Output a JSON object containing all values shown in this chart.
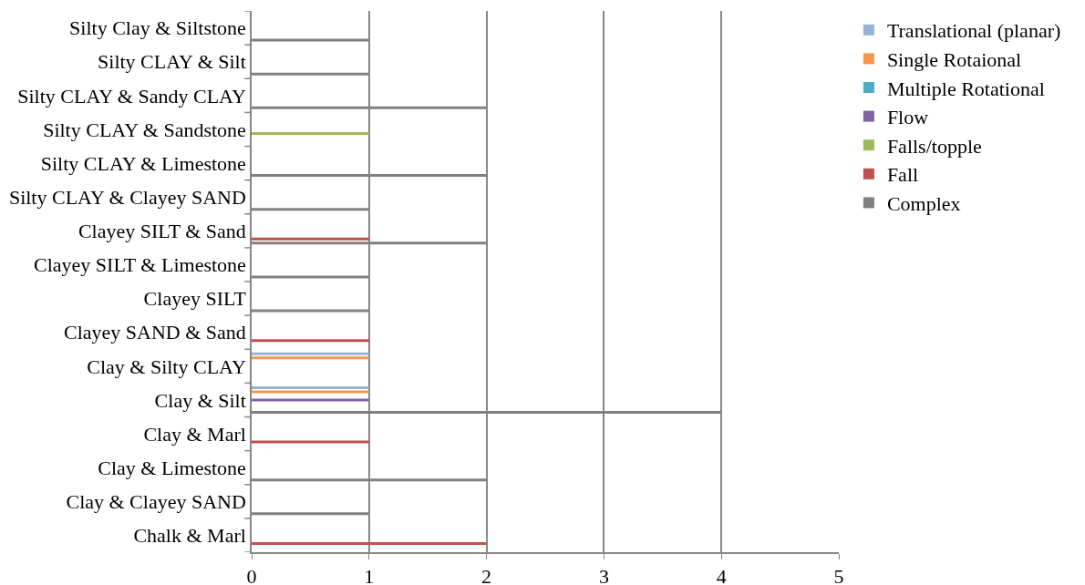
{
  "chart_data": {
    "type": "bar",
    "orientation": "horizontal",
    "categories": [
      "Silty Clay & Siltstone",
      "Silty CLAY & Silt",
      "Silty CLAY & Sandy CLAY",
      "Silty CLAY & Sandstone",
      "Silty CLAY & Limestone",
      "Silty CLAY & Clayey SAND",
      "Clayey SILT & Sand",
      "Clayey SILT & Limestone",
      "Clayey SILT",
      "Clayey SAND & Sand",
      "Clay & Silty CLAY",
      "Clay & Silt",
      "Clay & Marl",
      "Clay & Limestone",
      "Clay & Clayey SAND",
      "Chalk & Marl"
    ],
    "series": [
      {
        "name": "Translational (planar)",
        "color": "#95b3d7",
        "values": [
          null,
          null,
          null,
          null,
          null,
          null,
          null,
          null,
          null,
          null,
          1,
          1,
          null,
          null,
          null,
          null
        ]
      },
      {
        "name": "Single Rotaional",
        "color": "#f79646",
        "values": [
          null,
          null,
          null,
          null,
          null,
          null,
          null,
          null,
          null,
          null,
          1,
          1,
          null,
          null,
          null,
          null
        ]
      },
      {
        "name": "Multiple Rotational",
        "color": "#4bacc6",
        "values": [
          null,
          null,
          null,
          null,
          null,
          null,
          null,
          null,
          null,
          null,
          null,
          null,
          null,
          null,
          null,
          null
        ]
      },
      {
        "name": "Flow",
        "color": "#8064a2",
        "values": [
          null,
          null,
          null,
          null,
          null,
          null,
          null,
          null,
          null,
          null,
          null,
          1,
          null,
          null,
          null,
          null
        ]
      },
      {
        "name": "Falls/topple",
        "color": "#9bbb59",
        "values": [
          null,
          null,
          null,
          1,
          null,
          null,
          null,
          null,
          null,
          null,
          null,
          null,
          null,
          null,
          null,
          null
        ]
      },
      {
        "name": "Fall",
        "color": "#c0504d",
        "values": [
          null,
          null,
          null,
          null,
          null,
          null,
          1,
          null,
          null,
          1,
          null,
          null,
          1,
          null,
          null,
          2
        ]
      },
      {
        "name": "Complex",
        "color": "#808080",
        "values": [
          1,
          1,
          2,
          null,
          2,
          1,
          2,
          1,
          1,
          null,
          null,
          4,
          null,
          2,
          1,
          null
        ]
      }
    ],
    "xlim": [
      0,
      5
    ],
    "xticks": [
      0,
      1,
      2,
      3,
      4,
      5
    ],
    "grid": "x",
    "legend": "right"
  }
}
